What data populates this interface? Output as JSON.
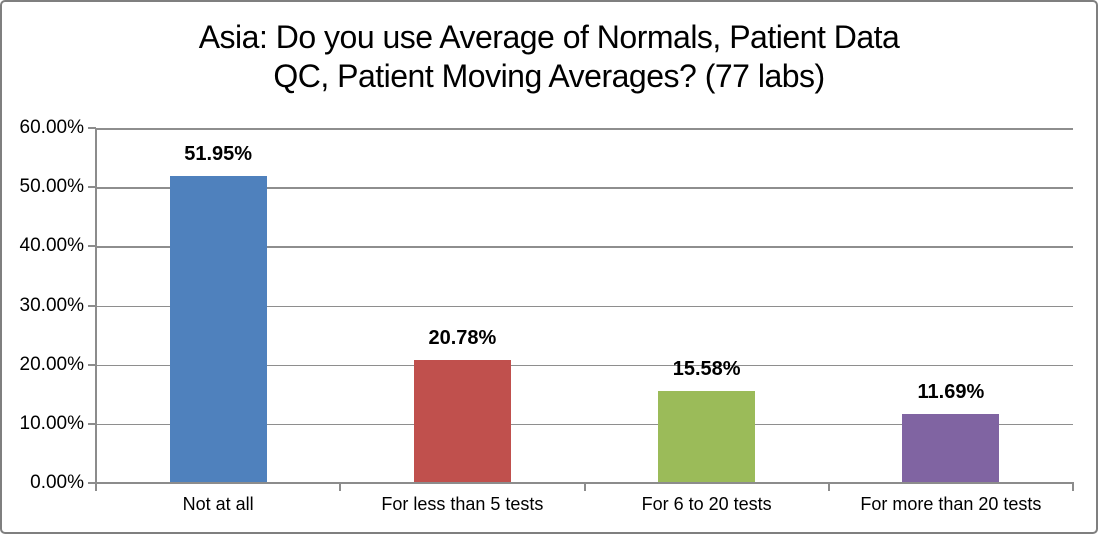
{
  "chart_data": {
    "type": "bar",
    "title": "Asia: Do you use Average of Normals, Patient Data QC, Patient Moving Averages? (77 labs)",
    "title_lines": [
      "Asia: Do you use Average of Normals, Patient Data",
      "QC, Patient Moving Averages? (77 labs)"
    ],
    "categories": [
      "Not at all",
      "For less than 5 tests",
      "For 6 to 20 tests",
      "For more than 20 tests"
    ],
    "values": [
      51.95,
      20.78,
      15.58,
      11.69
    ],
    "value_labels": [
      "51.95%",
      "20.78%",
      "15.58%",
      "11.69%"
    ],
    "bar_colors": [
      "#4F81BD",
      "#C0504D",
      "#9BBB59",
      "#8064A2"
    ],
    "y_axis": {
      "tick_labels": [
        "0.00%",
        "10.00%",
        "20.00%",
        "30.00%",
        "40.00%",
        "50.00%",
        "60.00%"
      ],
      "tick_values": [
        0,
        10,
        20,
        30,
        40,
        50,
        60
      ],
      "min": 0,
      "max": 60
    },
    "grid": true,
    "legend": false,
    "colors": {
      "grid_line": "#8E8E8E",
      "axis_line": "#8C8C8C",
      "text": "#000000",
      "background": "#FFFFFF",
      "frame_border": "#7F7F7F"
    }
  }
}
